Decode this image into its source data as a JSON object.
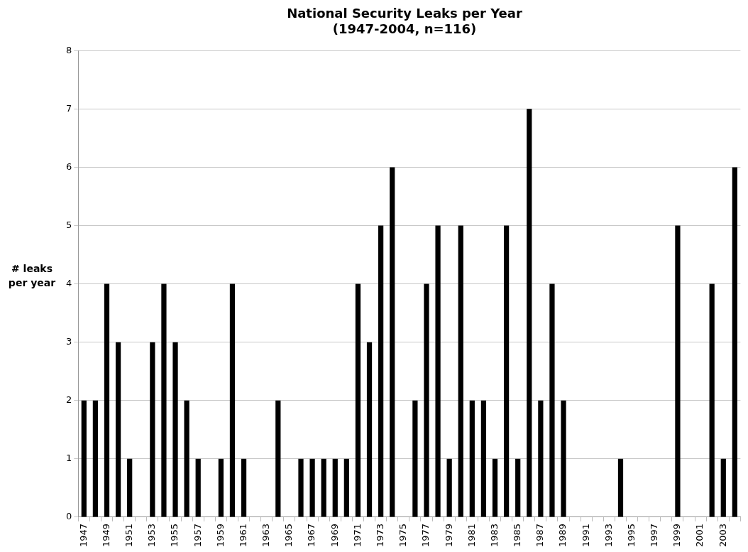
{
  "chart_data": {
    "type": "bar",
    "title": "National Security Leaks per Year\n(1947-2004, n=116)",
    "ylabel": "# leaks\nper year",
    "categories": [
      "1947",
      null,
      "1949",
      null,
      "1951",
      null,
      "1953",
      null,
      "1955",
      null,
      "1957",
      null,
      "1959",
      null,
      "1961",
      null,
      "1963",
      null,
      "1965",
      null,
      "1967",
      null,
      "1969",
      null,
      "1971",
      null,
      "1973",
      null,
      "1975",
      null,
      "1977",
      null,
      "1979",
      null,
      "1981",
      null,
      "1983",
      null,
      "1985",
      null,
      "1987",
      null,
      "1989",
      null,
      "1991",
      null,
      "1993",
      null,
      "1995",
      null,
      "1997",
      null,
      "1999",
      null,
      "2001",
      null,
      "2003",
      null
    ],
    "values": [
      2,
      2,
      4,
      3,
      1,
      0,
      3,
      4,
      3,
      2,
      1,
      0,
      1,
      4,
      1,
      0,
      0,
      2,
      0,
      1,
      1,
      1,
      1,
      1,
      4,
      3,
      5,
      6,
      0,
      2,
      4,
      5,
      1,
      5,
      2,
      2,
      1,
      5,
      1,
      7,
      2,
      4,
      2,
      0,
      0,
      0,
      0,
      1,
      0,
      0,
      0,
      0,
      5,
      0,
      0,
      4,
      1,
      6
    ],
    "color": "#000000",
    "ylim": [
      0,
      8
    ],
    "yticks": [
      0,
      1,
      2,
      3,
      4,
      5,
      6,
      7,
      8
    ],
    "grid": "y"
  }
}
